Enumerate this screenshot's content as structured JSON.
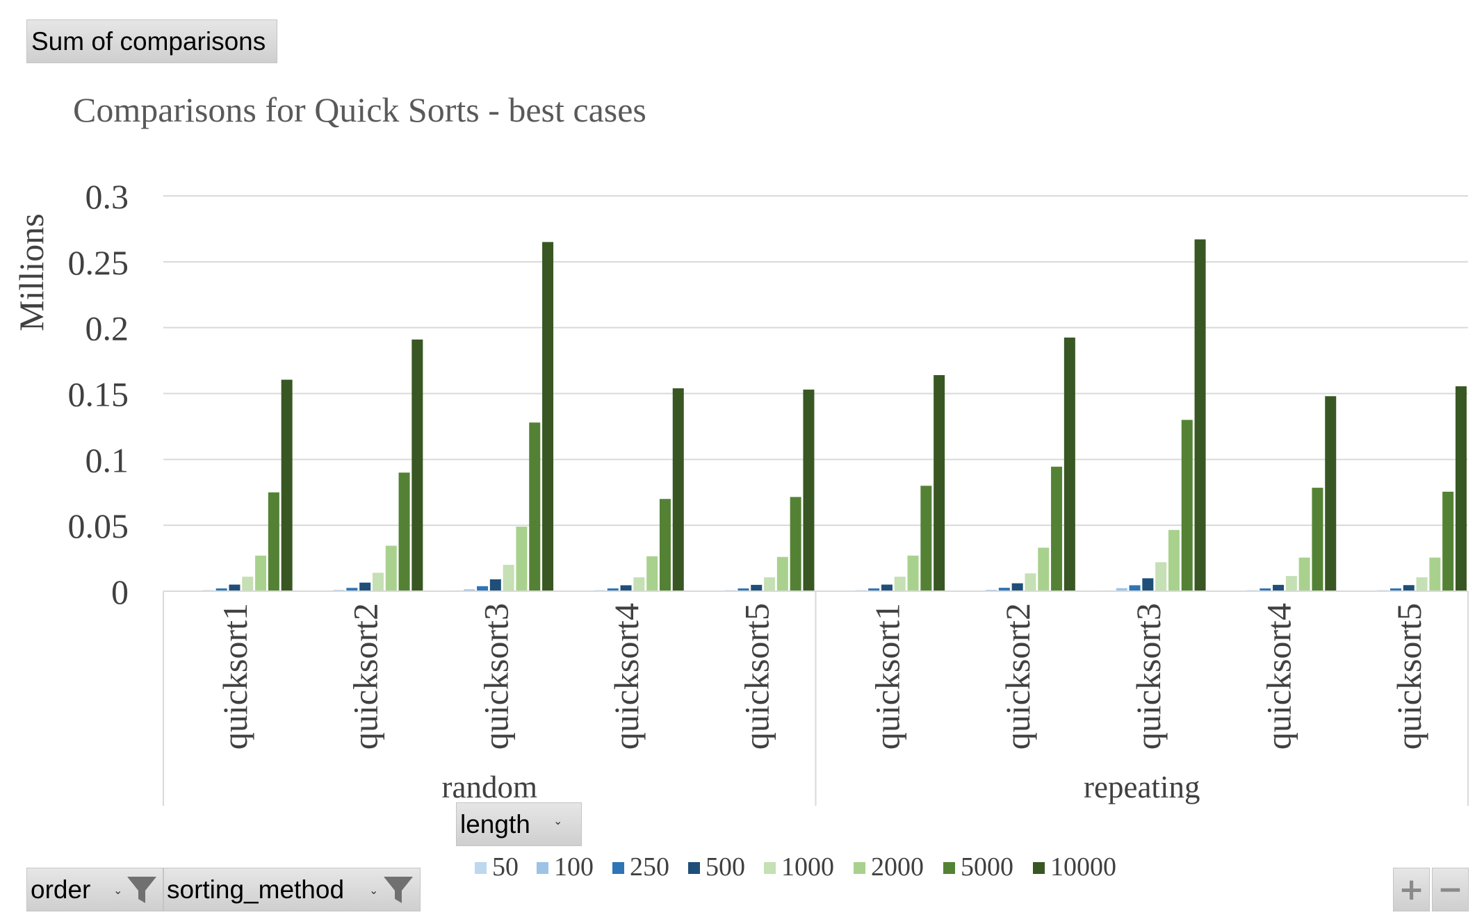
{
  "pivot": {
    "sum_label": "Sum of comparisons",
    "length_label": "length",
    "order_label": "order",
    "method_label": "sorting_method",
    "zoom_in": "+",
    "zoom_out": "−"
  },
  "chart_data": {
    "type": "bar",
    "title": "Comparisons for Quick Sorts - best cases",
    "ylabel": "Millions",
    "xlabel": "",
    "ylim": [
      0,
      0.3
    ],
    "yticks": [
      "0",
      "0.05",
      "0.1",
      "0.15",
      "0.2",
      "0.25",
      "0.3"
    ],
    "groups": [
      {
        "name": "random",
        "categories": [
          "quicksort1",
          "quicksort2",
          "quicksort3",
          "quicksort4",
          "quicksort5"
        ]
      },
      {
        "name": "repeating",
        "categories": [
          "quicksort1",
          "quicksort2",
          "quicksort3",
          "quicksort4",
          "quicksort5"
        ]
      }
    ],
    "legend_position": "bottom",
    "series": [
      {
        "name": "50",
        "color": "#bdd7ee",
        "values": [
          0.0003,
          0.0004,
          0.0006,
          0.0003,
          0.0003,
          0.0003,
          0.0004,
          0.0006,
          0.0003,
          0.0003
        ]
      },
      {
        "name": "100",
        "color": "#9dc3e6",
        "values": [
          0.0007,
          0.0009,
          0.0014,
          0.0007,
          0.0007,
          0.0007,
          0.001,
          0.0023,
          0.0007,
          0.0007
        ]
      },
      {
        "name": "250",
        "color": "#2e75b6",
        "values": [
          0.0021,
          0.0025,
          0.0038,
          0.0021,
          0.0021,
          0.0021,
          0.0026,
          0.0045,
          0.0021,
          0.0021
        ]
      },
      {
        "name": "500",
        "color": "#1f4e79",
        "values": [
          0.005,
          0.0065,
          0.009,
          0.0045,
          0.0048,
          0.005,
          0.006,
          0.0098,
          0.0048,
          0.0046
        ]
      },
      {
        "name": "1000",
        "color": "#c5e0b4",
        "values": [
          0.011,
          0.014,
          0.02,
          0.0105,
          0.0105,
          0.011,
          0.0135,
          0.022,
          0.0115,
          0.0105
        ]
      },
      {
        "name": "2000",
        "color": "#a9d18e",
        "values": [
          0.027,
          0.0345,
          0.049,
          0.0265,
          0.026,
          0.027,
          0.033,
          0.0465,
          0.0255,
          0.0255
        ]
      },
      {
        "name": "5000",
        "color": "#548235",
        "values": [
          0.075,
          0.09,
          0.128,
          0.07,
          0.0715,
          0.08,
          0.0945,
          0.13,
          0.0785,
          0.0755
        ]
      },
      {
        "name": "10000",
        "color": "#385723",
        "values": [
          0.1605,
          0.191,
          0.265,
          0.154,
          0.153,
          0.164,
          0.1925,
          0.267,
          0.148,
          0.1555
        ]
      }
    ]
  }
}
